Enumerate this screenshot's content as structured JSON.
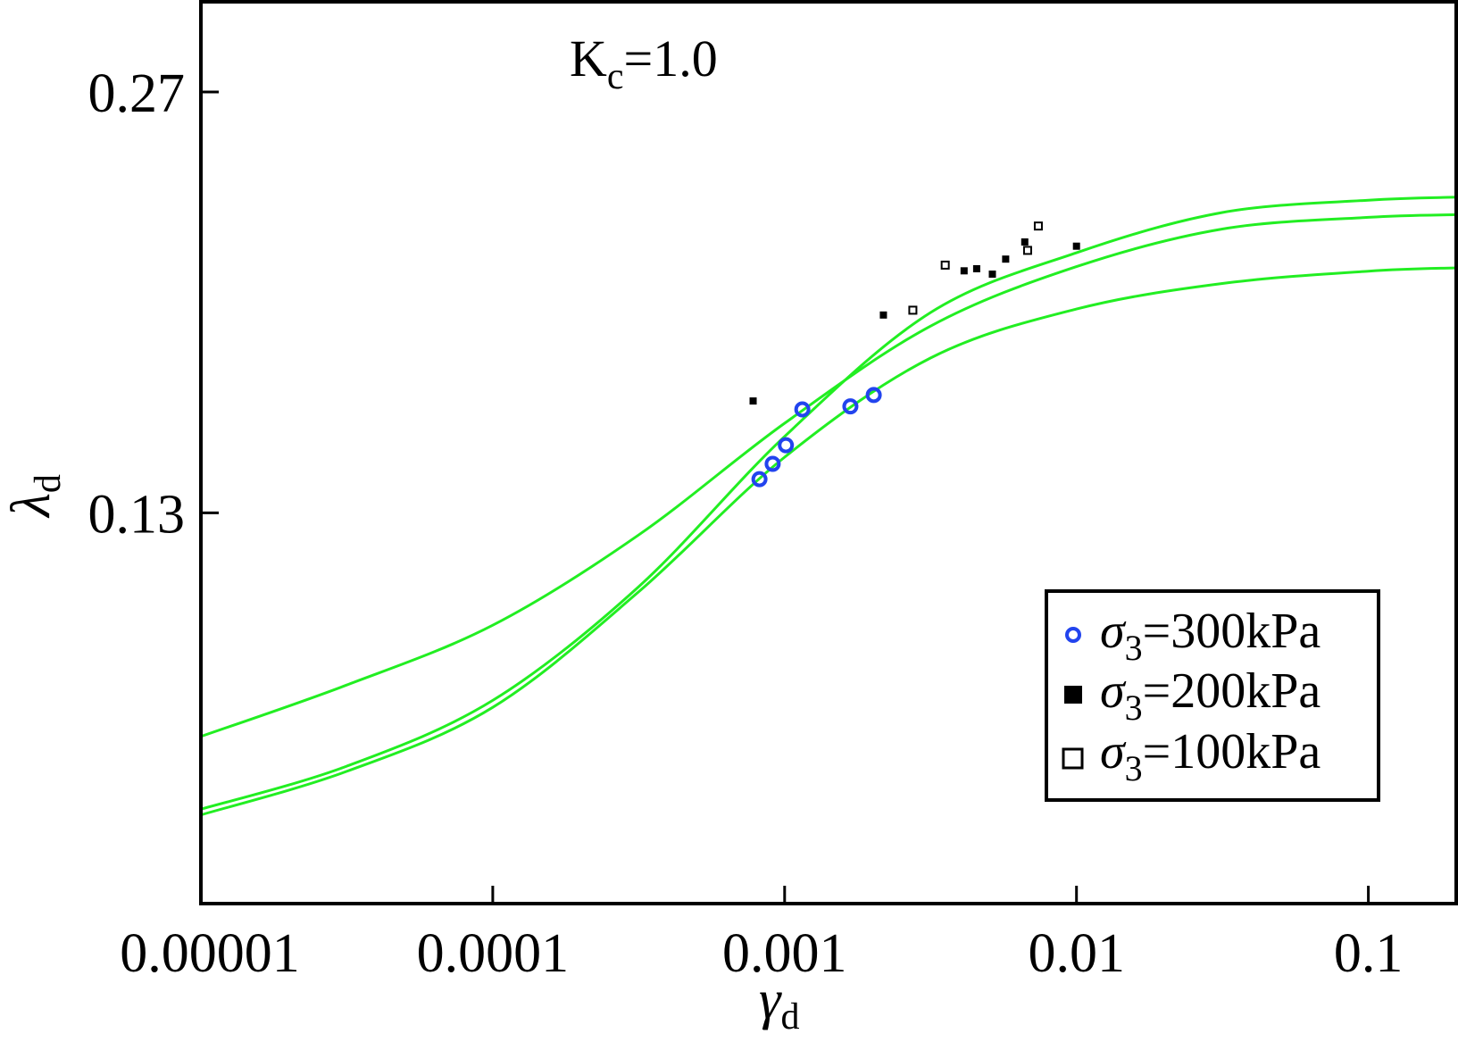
{
  "chart_data": {
    "type": "scatter",
    "annotation": {
      "main": "K",
      "sub": "c",
      "tail": "=1.0"
    },
    "xlabel": {
      "main": "γ",
      "sub": "d"
    },
    "ylabel": {
      "main": "λ",
      "sub": "d"
    },
    "x_scale": "log",
    "xlim": [
      1e-05,
      0.2
    ],
    "ylim": [
      0.0,
      0.3
    ],
    "x_ticks": [
      {
        "value": 1e-05,
        "label": "0.00001"
      },
      {
        "value": 0.0001,
        "label": "0.0001"
      },
      {
        "value": 0.001,
        "label": "0.001"
      },
      {
        "value": 0.01,
        "label": "0.01"
      },
      {
        "value": 0.1,
        "label": "0.1"
      }
    ],
    "y_ticks": [
      {
        "value": 0.13,
        "label": "0.13"
      },
      {
        "value": 0.27,
        "label": "0.27"
      }
    ],
    "grid": false,
    "legend_position": "bottom-right",
    "colors": {
      "curve": "#22ee22",
      "series_300": "#2244ee",
      "series_200": "#000000",
      "series_100": "#000000",
      "frame": "#000000"
    },
    "series": [
      {
        "name": {
          "main": "σ",
          "sub": "3",
          "tail": "=300kPa"
        },
        "marker": "circle-open",
        "x": [
          0.00082,
          0.00091,
          0.00101,
          0.00115,
          0.00168,
          0.00202
        ],
        "y": [
          0.1412,
          0.1463,
          0.1525,
          0.1644,
          0.1654,
          0.1692
        ]
      },
      {
        "name": {
          "main": "σ",
          "sub": "3",
          "tail": "=200kPa"
        },
        "marker": "square-filled",
        "x": [
          0.00078,
          0.00218,
          0.00412,
          0.00455,
          0.00515,
          0.00572,
          0.00665,
          0.01
        ],
        "y": [
          0.1672,
          0.1958,
          0.2105,
          0.2112,
          0.2094,
          0.2144,
          0.2201,
          0.2187
        ]
      },
      {
        "name": {
          "main": "σ",
          "sub": "3",
          "tail": "=100kPa"
        },
        "marker": "square-open",
        "x": [
          0.00275,
          0.00355,
          0.0068,
          0.0074
        ],
        "y": [
          0.1974,
          0.2124,
          0.2173,
          0.2254
        ]
      }
    ],
    "curves": [
      {
        "x": [
          1e-05,
          3.16e-05,
          0.0001,
          0.000316,
          0.001,
          0.00316,
          0.01,
          0.0316,
          0.1,
          0.2
        ],
        "y": [
          0.0556,
          0.0727,
          0.0926,
          0.1226,
          0.1598,
          0.1921,
          0.2119,
          0.2244,
          0.2283,
          0.2292
        ]
      },
      {
        "x": [
          1e-05,
          3.16e-05,
          0.0001,
          0.000316,
          0.001,
          0.00316,
          0.01,
          0.0316,
          0.1,
          0.2
        ],
        "y": [
          0.0314,
          0.0457,
          0.0676,
          0.1054,
          0.1554,
          0.1966,
          0.2165,
          0.2299,
          0.234,
          0.235
        ]
      },
      {
        "x": [
          1e-05,
          3.16e-05,
          0.0001,
          0.000316,
          0.001,
          0.00316,
          0.01,
          0.0316,
          0.1,
          0.2
        ],
        "y": [
          0.0295,
          0.044,
          0.0653,
          0.1037,
          0.1485,
          0.1815,
          0.1978,
          0.2063,
          0.2104,
          0.2115
        ]
      }
    ]
  }
}
